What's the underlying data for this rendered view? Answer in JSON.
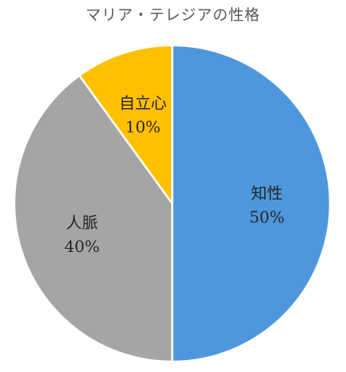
{
  "chart_data": {
    "type": "pie",
    "title": "マリア・テレジアの性格",
    "slices": [
      {
        "label": "知性",
        "value": 50,
        "value_label": "50%",
        "color": "#4e97dc"
      },
      {
        "label": "人脈",
        "value": 40,
        "value_label": "40%",
        "color": "#a5a5a5"
      },
      {
        "label": "自立心",
        "value": 10,
        "value_label": "10%",
        "color": "#ffc000"
      }
    ],
    "start_angle_deg": 0,
    "direction": "clockwise",
    "legend": "none"
  }
}
